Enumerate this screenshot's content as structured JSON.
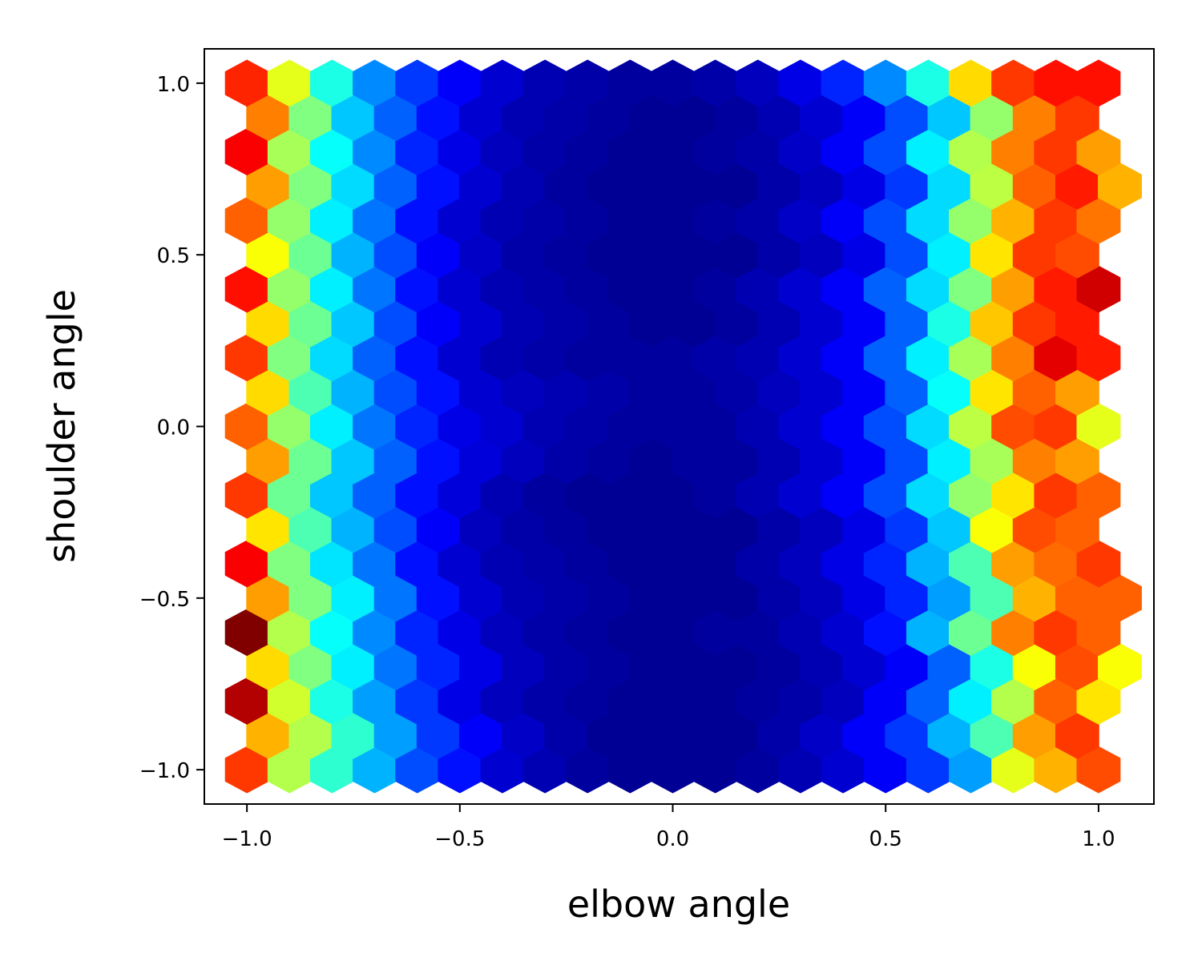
{
  "chart_data": {
    "type": "hexbin",
    "title": "",
    "xlabel": "elbow angle",
    "ylabel": "shoulder angle",
    "xlim": [
      -1.1,
      1.13
    ],
    "ylim": [
      -1.1,
      1.1
    ],
    "grid": false,
    "colormap": "jet",
    "xticks": [
      -1.0,
      -0.5,
      0.0,
      0.5,
      1.0
    ],
    "yticks": [
      -1.0,
      -0.5,
      0.0,
      0.5,
      1.0
    ],
    "xtick_labels": [
      "−1.0",
      "−0.5",
      "0.0",
      "0.5",
      "1.0"
    ],
    "ytick_labels": [
      "−1.0",
      "−0.5",
      "0.0",
      "0.5",
      "1.0"
    ],
    "hex_grid": {
      "x_start": -1.0,
      "x_step": 0.1,
      "y_start": -1.0,
      "y_step": 0.1,
      "row_offset": 0.05
    },
    "counts_description": "Normalized bin density (0-1), values by row from y=-1.0 upward; even rows at x=-1.0..1.0, odd rows shifted +0.05",
    "rows": [
      [
        0.82,
        0.55,
        0.42,
        0.3,
        0.2,
        0.14,
        0.08,
        0.05,
        0.03,
        0.02,
        0.02,
        0.02,
        0.03,
        0.05,
        0.08,
        0.12,
        0.18,
        0.28,
        0.6,
        0.7,
        0.8
      ],
      [
        0.7,
        0.55,
        0.42,
        0.28,
        0.18,
        0.12,
        0.07,
        0.04,
        0.02,
        0.02,
        0.02,
        0.02,
        0.04,
        0.07,
        0.12,
        0.18,
        0.3,
        0.45,
        0.72,
        0.82
      ],
      [
        0.95,
        0.58,
        0.4,
        0.28,
        0.18,
        0.1,
        0.06,
        0.04,
        0.03,
        0.02,
        0.02,
        0.02,
        0.03,
        0.04,
        0.06,
        0.12,
        0.22,
        0.36,
        0.55,
        0.78,
        0.65
      ],
      [
        0.66,
        0.5,
        0.36,
        0.24,
        0.16,
        0.1,
        0.06,
        0.04,
        0.03,
        0.02,
        0.02,
        0.02,
        0.03,
        0.05,
        0.08,
        0.12,
        0.22,
        0.4,
        0.62,
        0.8,
        0.62
      ],
      [
        1.0,
        0.55,
        0.38,
        0.26,
        0.16,
        0.1,
        0.06,
        0.04,
        0.03,
        0.02,
        0.02,
        0.03,
        0.03,
        0.05,
        0.08,
        0.14,
        0.3,
        0.48,
        0.75,
        0.82,
        0.78
      ],
      [
        0.72,
        0.5,
        0.36,
        0.24,
        0.14,
        0.08,
        0.05,
        0.04,
        0.03,
        0.02,
        0.02,
        0.02,
        0.04,
        0.06,
        0.1,
        0.16,
        0.28,
        0.45,
        0.7,
        0.78,
        0.78
      ],
      [
        0.88,
        0.5,
        0.35,
        0.24,
        0.14,
        0.08,
        0.05,
        0.04,
        0.03,
        0.02,
        0.02,
        0.02,
        0.04,
        0.06,
        0.1,
        0.16,
        0.3,
        0.45,
        0.72,
        0.77,
        0.82
      ],
      [
        0.65,
        0.45,
        0.3,
        0.2,
        0.12,
        0.06,
        0.04,
        0.03,
        0.02,
        0.02,
        0.02,
        0.02,
        0.04,
        0.06,
        0.1,
        0.18,
        0.32,
        0.62,
        0.8,
        0.78
      ],
      [
        0.82,
        0.48,
        0.32,
        0.22,
        0.14,
        0.09,
        0.05,
        0.03,
        0.02,
        0.02,
        0.02,
        0.03,
        0.05,
        0.08,
        0.12,
        0.2,
        0.34,
        0.52,
        0.65,
        0.82,
        0.78
      ],
      [
        0.72,
        0.48,
        0.32,
        0.22,
        0.14,
        0.09,
        0.06,
        0.04,
        0.03,
        0.02,
        0.03,
        0.03,
        0.05,
        0.08,
        0.12,
        0.2,
        0.36,
        0.54,
        0.75,
        0.72
      ],
      [
        0.78,
        0.52,
        0.36,
        0.24,
        0.16,
        0.1,
        0.08,
        0.05,
        0.04,
        0.03,
        0.03,
        0.03,
        0.05,
        0.08,
        0.12,
        0.2,
        0.34,
        0.56,
        0.8,
        0.82,
        0.6
      ],
      [
        0.66,
        0.45,
        0.3,
        0.2,
        0.14,
        0.08,
        0.06,
        0.05,
        0.04,
        0.03,
        0.03,
        0.04,
        0.06,
        0.08,
        0.12,
        0.22,
        0.38,
        0.65,
        0.78,
        0.72
      ],
      [
        0.82,
        0.5,
        0.34,
        0.22,
        0.14,
        0.08,
        0.05,
        0.04,
        0.03,
        0.03,
        0.03,
        0.04,
        0.05,
        0.08,
        0.12,
        0.22,
        0.36,
        0.54,
        0.75,
        0.9,
        0.85
      ],
      [
        0.66,
        0.48,
        0.32,
        0.2,
        0.12,
        0.08,
        0.05,
        0.04,
        0.03,
        0.02,
        0.02,
        0.03,
        0.05,
        0.08,
        0.12,
        0.22,
        0.4,
        0.68,
        0.82,
        0.85
      ],
      [
        0.86,
        0.52,
        0.36,
        0.24,
        0.14,
        0.08,
        0.05,
        0.04,
        0.03,
        0.02,
        0.02,
        0.03,
        0.05,
        0.08,
        0.12,
        0.22,
        0.34,
        0.5,
        0.72,
        0.85,
        0.92
      ],
      [
        0.62,
        0.48,
        0.3,
        0.2,
        0.12,
        0.07,
        0.04,
        0.03,
        0.02,
        0.02,
        0.02,
        0.02,
        0.04,
        0.06,
        0.1,
        0.2,
        0.36,
        0.65,
        0.82,
        0.8
      ],
      [
        0.78,
        0.52,
        0.36,
        0.24,
        0.14,
        0.08,
        0.05,
        0.04,
        0.03,
        0.02,
        0.02,
        0.03,
        0.04,
        0.07,
        0.12,
        0.2,
        0.34,
        0.52,
        0.7,
        0.82,
        0.76
      ],
      [
        0.72,
        0.5,
        0.34,
        0.22,
        0.14,
        0.08,
        0.05,
        0.03,
        0.02,
        0.02,
        0.02,
        0.02,
        0.04,
        0.06,
        0.1,
        0.18,
        0.34,
        0.56,
        0.78,
        0.85,
        0.7
      ],
      [
        0.88,
        0.54,
        0.38,
        0.26,
        0.16,
        0.1,
        0.06,
        0.04,
        0.03,
        0.02,
        0.02,
        0.03,
        0.04,
        0.07,
        0.12,
        0.2,
        0.36,
        0.55,
        0.75,
        0.82,
        0.72
      ],
      [
        0.75,
        0.5,
        0.32,
        0.22,
        0.14,
        0.08,
        0.05,
        0.04,
        0.03,
        0.02,
        0.02,
        0.03,
        0.05,
        0.08,
        0.12,
        0.2,
        0.32,
        0.52,
        0.75,
        0.82
      ],
      [
        0.84,
        0.6,
        0.4,
        0.26,
        0.18,
        0.12,
        0.08,
        0.05,
        0.04,
        0.03,
        0.03,
        0.04,
        0.06,
        0.1,
        0.16,
        0.26,
        0.4,
        0.66,
        0.82,
        0.86,
        0.86
      ]
    ]
  }
}
